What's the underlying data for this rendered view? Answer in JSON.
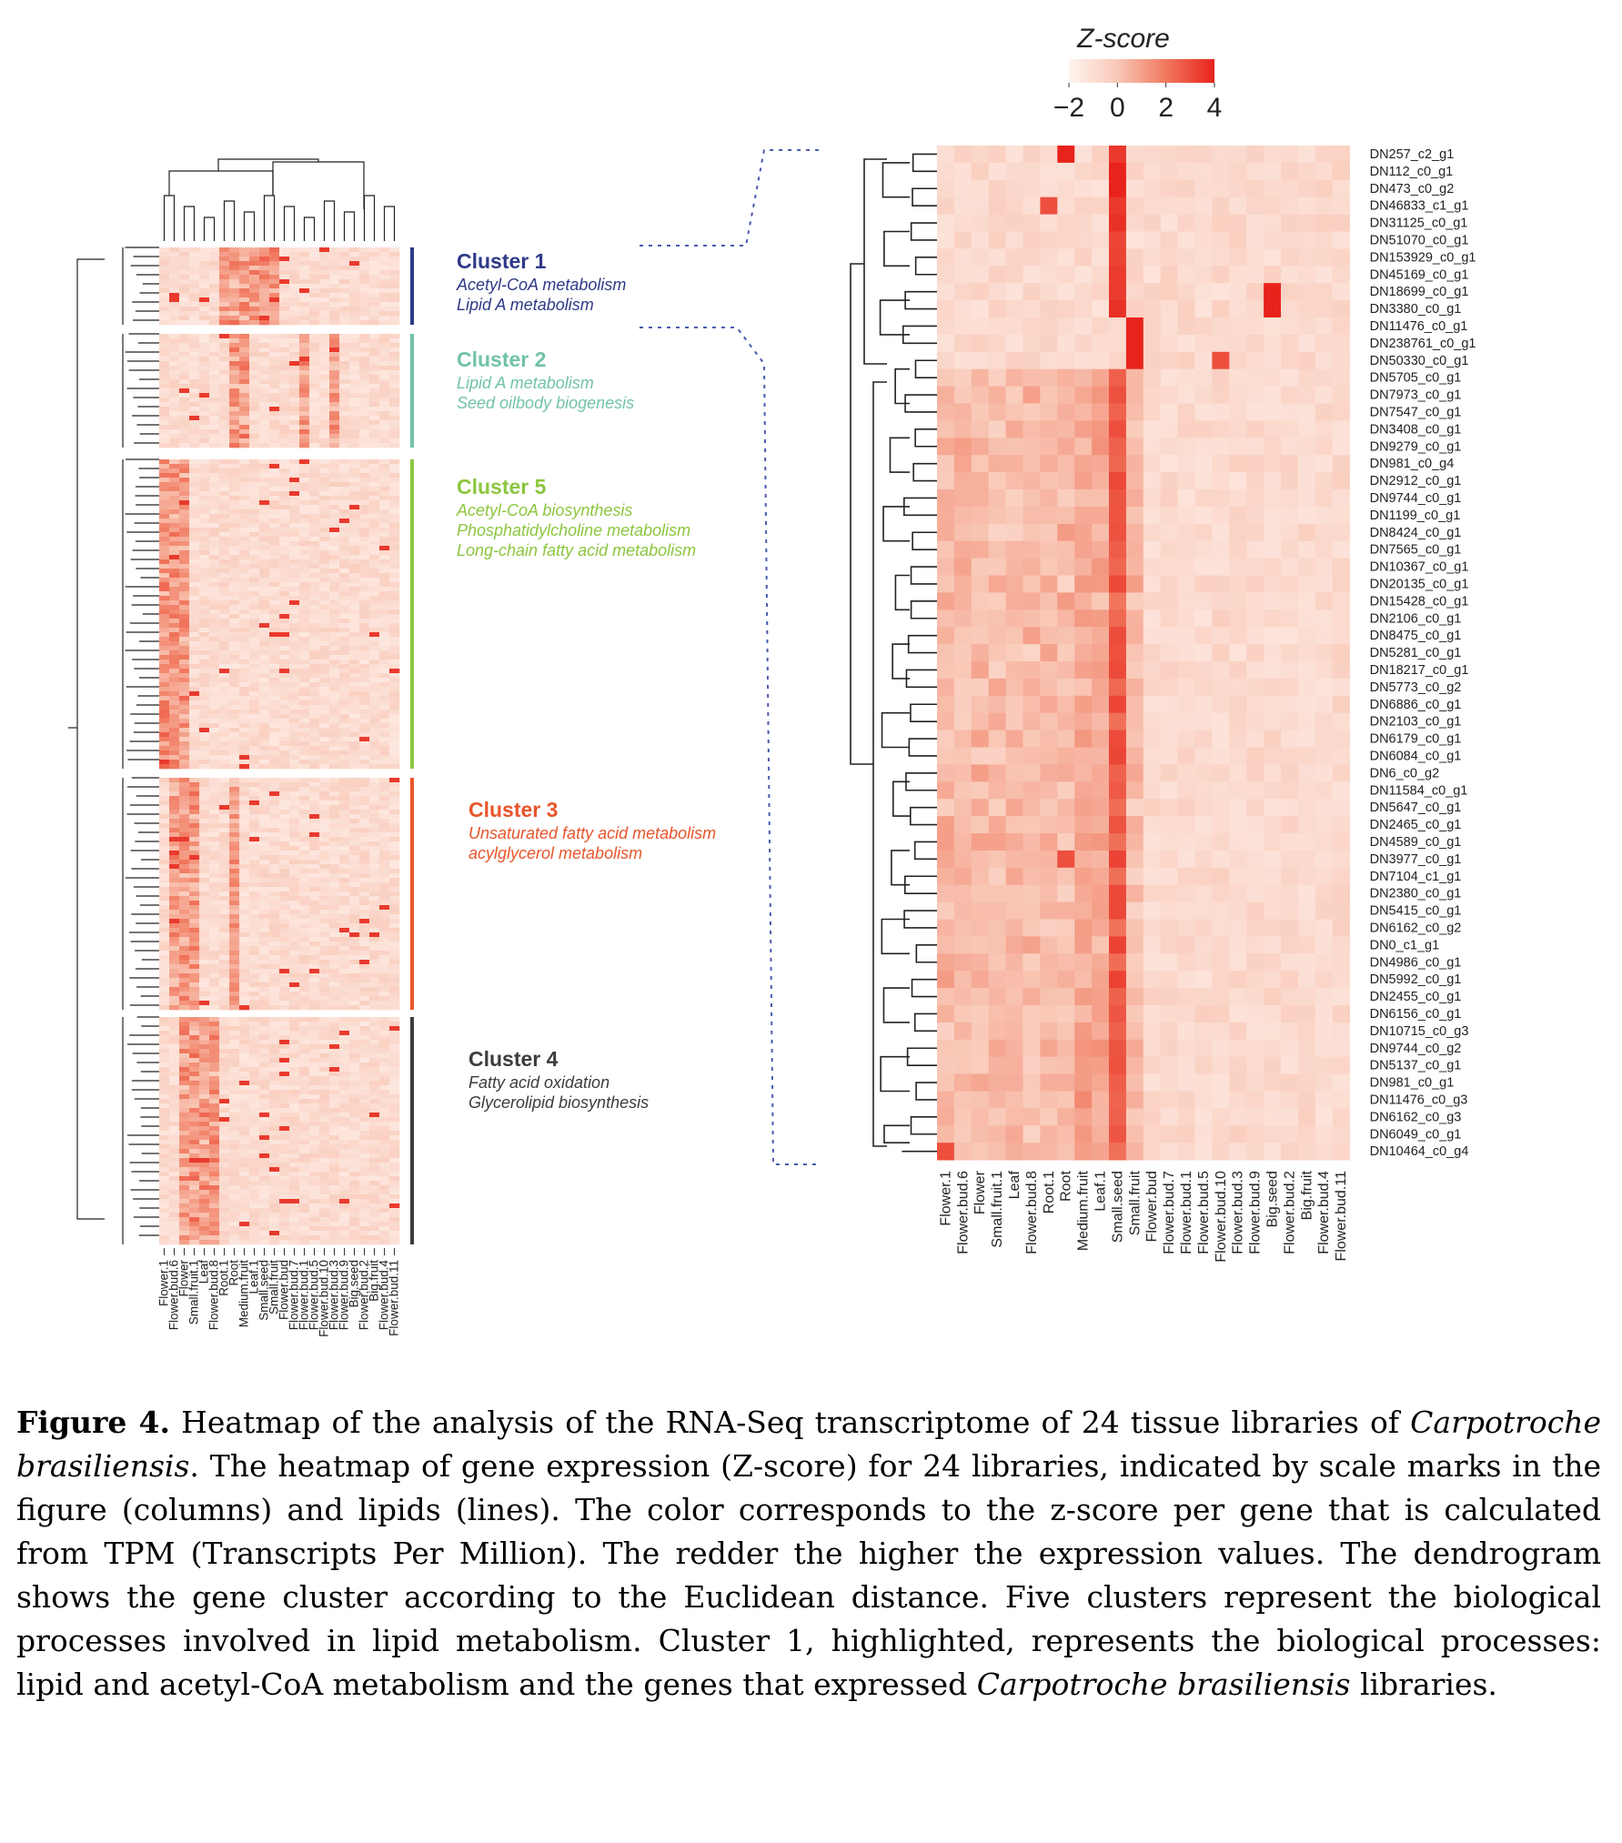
{
  "legend": {
    "title": "Z-score",
    "ticks": [
      "−2",
      "0",
      "2",
      "4"
    ],
    "colors": [
      "#fff4f0",
      "#f7b9a6",
      "#f17a60",
      "#e8231c"
    ]
  },
  "libraries_overview": [
    "Flower.1",
    "Flower.bud.6",
    "Flower",
    "Small.fruit.1",
    "Leaf",
    "Flower.bud.8",
    "Root.1",
    "Root",
    "Medium.fruit",
    "Leaf.1",
    "Small.seed",
    "Small.fruit",
    "Flower.bud",
    "Flower.bud.7",
    "Flower.bud.1",
    "Flower.bud.5",
    "Flower.bud.10",
    "Flower.bud.3",
    "Flower.bud.9",
    "Big.seed",
    "Flower.bud.2",
    "Big.fruit",
    "Flower.bud.4",
    "Flower.bud.11"
  ],
  "clusters": [
    {
      "name": "Cluster 1",
      "color": "#2e3a87",
      "lines": [
        "Acetyl-CoA metabolism",
        "Lipid A metabolism"
      ]
    },
    {
      "name": "Cluster 2",
      "color": "#72c3a4",
      "lines": [
        "Lipid A metabolism",
        "Seed oilbody biogenesis"
      ]
    },
    {
      "name": "Cluster 5",
      "color": "#8cc63f",
      "lines": [
        "Acetyl-CoA biosynthesis",
        "Phosphatidylcholine metabolism",
        "Long-chain fatty acid metabolism"
      ]
    },
    {
      "name": "Cluster 3",
      "color": "#e8552b",
      "lines": [
        "Unsaturated fatty acid metabolism",
        "acylglycerol metabolism"
      ]
    },
    {
      "name": "Cluster 4",
      "color": "#3c3c3c",
      "lines": [
        "Fatty acid oxidation",
        "Glycerolipid biosynthesis"
      ]
    }
  ],
  "caption": {
    "label": "Figure 4.",
    "part1": " Heatmap of the analysis of the RNA-Seq transcriptome of 24 tissue libraries of ",
    "species1": "Carpotroche brasiliensis",
    "part2": ". The heatmap of gene expression (Z-score) for 24 libraries, indicated by scale marks in the figure (columns) and lipids (lines). The color corresponds to the z-score per gene that is calculated from TPM (Transcripts Per Million). The redder the higher the expression values. The dendrogram shows the gene cluster according to the Euclidean distance. Five clusters represent the biological processes involved in lipid metabolism. Cluster 1, highlighted, represents the biological processes: lipid and acetyl-CoA metabolism and the genes that expressed ",
    "species2": "Carpotroche brasiliensis",
    "part3": " libraries."
  },
  "chart_data": {
    "type": "heatmap",
    "title": "",
    "colorbar_label": "Z-score",
    "colorbar_range": [
      -2,
      4
    ],
    "columns": [
      "Flower.1",
      "Flower.bud.6",
      "Flower",
      "Small.fruit.1",
      "Leaf",
      "Flower.bud.8",
      "Root.1",
      "Root",
      "Medium.fruit",
      "Leaf.1",
      "Small.seed",
      "Small.fruit",
      "Flower.bud",
      "Flower.bud.7",
      "Flower.bud.1",
      "Flower.bud.5",
      "Flower.bud.10",
      "Flower.bud.3",
      "Flower.bud.9",
      "Big.seed",
      "Flower.bud.2",
      "Big.fruit",
      "Flower.bud.4",
      "Flower.bud.11"
    ],
    "rows": [
      "DN257_c2_g1",
      "DN112_c0_g1",
      "DN473_c0_g2",
      "DN46833_c1_g1",
      "DN31125_c0_g1",
      "DN51070_c0_g1",
      "DN153929_c0_g1",
      "DN45169_c0_g1",
      "DN18699_c0_g1",
      "DN3380_c0_g1",
      "DN11476_c0_g1",
      "DN238761_c0_g1",
      "DN50330_c0_g1",
      "DN5705_c0_g1",
      "DN7973_c0_g1",
      "DN7547_c0_g1",
      "DN3408_c0_g1",
      "DN9279_c0_g1",
      "DN981_c0_g4",
      "DN2912_c0_g1",
      "DN9744_c0_g1",
      "DN1199_c0_g1",
      "DN8424_c0_g1",
      "DN7565_c0_g1",
      "DN10367_c0_g1",
      "DN20135_c0_g1",
      "DN15428_c0_g1",
      "DN2106_c0_g1",
      "DN8475_c0_g1",
      "DN5281_c0_g1",
      "DN18217_c0_g1",
      "DN5773_c0_g2",
      "DN6886_c0_g1",
      "DN2103_c0_g1",
      "DN6179_c0_g1",
      "DN6084_c0_g1",
      "DN6_c0_g2",
      "DN11584_c0_g1",
      "DN5647_c0_g1",
      "DN2465_c0_g1",
      "DN4589_c0_g1",
      "DN3977_c0_g1",
      "DN7104_c1_g1",
      "DN2380_c0_g1",
      "DN5415_c0_g1",
      "DN6162_c0_g2",
      "DN0_c1_g1",
      "DN4986_c0_g1",
      "DN5992_c0_g1",
      "DN2455_c0_g1",
      "DN6156_c0_g1",
      "DN10715_c0_g3",
      "DN9744_c0_g2",
      "DN5137_c0_g1",
      "DN981_c0_g1",
      "DN11476_c0_g3",
      "DN6162_c0_g3",
      "DN6049_c0_g1",
      "DN10464_c0_g4"
    ],
    "high_cells": [
      {
        "row": "DN257_c2_g1",
        "col": "Root",
        "z": 4
      },
      {
        "row": "DN112_c0_g1",
        "col": "Small.seed",
        "z": 4
      },
      {
        "row": "DN473_c0_g2",
        "col": "Small.seed",
        "z": 4
      },
      {
        "row": "DN46833_c1_g1",
        "col": "Root.1",
        "z": 3
      },
      {
        "row": "DN18699_c0_g1",
        "col": "Big.seed",
        "z": 4
      },
      {
        "row": "DN3380_c0_g1",
        "col": "Big.seed",
        "z": 4
      },
      {
        "row": "DN11476_c0_g1",
        "col": "Small.fruit",
        "z": 4
      },
      {
        "row": "DN238761_c0_g1",
        "col": "Small.fruit",
        "z": 4
      },
      {
        "row": "DN50330_c0_g1",
        "col": "Small.fruit",
        "z": 4
      },
      {
        "row": "DN50330_c0_g1",
        "col": "Flower.bud.10",
        "z": 3
      },
      {
        "row": "DN3977_c0_g1",
        "col": "Root",
        "z": 3
      },
      {
        "row": "DN10464_c0_g4",
        "col": "Flower.1",
        "z": 3
      }
    ]
  }
}
